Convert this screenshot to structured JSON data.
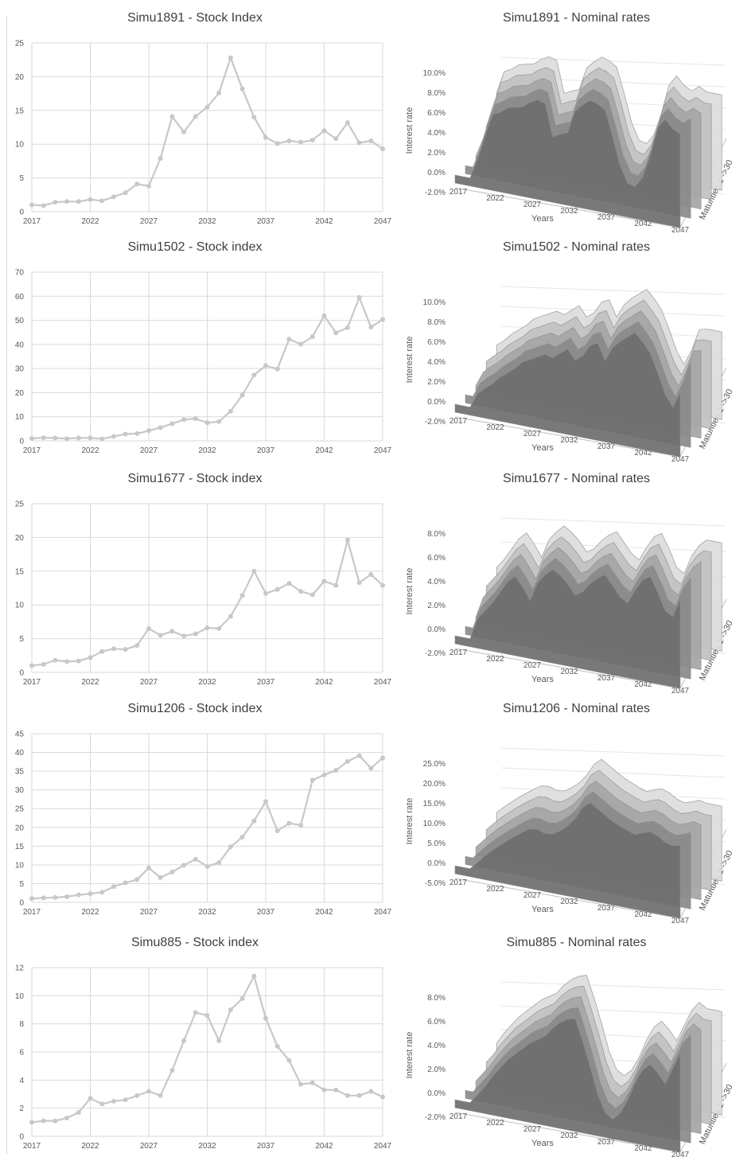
{
  "colors": {
    "line": "#c8c8c8",
    "grid": "#d9d9d9",
    "text": "#595959",
    "title": "#404040"
  },
  "chart_data": [
    {
      "type": "line",
      "title": "Simu1891 - Stock Index",
      "x": [
        2017,
        2018,
        2019,
        2020,
        2021,
        2022,
        2023,
        2024,
        2025,
        2026,
        2027,
        2028,
        2029,
        2030,
        2031,
        2032,
        2033,
        2034,
        2035,
        2036,
        2037,
        2038,
        2039,
        2040,
        2041,
        2042,
        2043,
        2044,
        2045,
        2046,
        2047
      ],
      "values": [
        1.0,
        0.9,
        1.4,
        1.5,
        1.5,
        1.8,
        1.6,
        2.2,
        2.8,
        4.1,
        3.8,
        7.9,
        14.1,
        11.8,
        14.1,
        15.5,
        17.6,
        22.8,
        18.2,
        14.0,
        11.0,
        10.1,
        10.5,
        10.3,
        10.6,
        12.0,
        10.8,
        13.2,
        10.2,
        10.5,
        9.3
      ],
      "ylim": [
        0,
        25
      ],
      "yticks": [
        0,
        5,
        10,
        15,
        20,
        25
      ],
      "xticks": [
        2017,
        2022,
        2027,
        2032,
        2037,
        2042,
        2047
      ]
    },
    {
      "type": "line",
      "title": "Simu1502 - Stock index",
      "x": [
        2017,
        2018,
        2019,
        2020,
        2021,
        2022,
        2023,
        2024,
        2025,
        2026,
        2027,
        2028,
        2029,
        2030,
        2031,
        2032,
        2033,
        2034,
        2035,
        2036,
        2037,
        2038,
        2039,
        2040,
        2041,
        2042,
        2043,
        2044,
        2045,
        2046,
        2047
      ],
      "values": [
        1.0,
        1.3,
        1.2,
        0.9,
        1.2,
        1.2,
        0.8,
        1.8,
        2.8,
        3.0,
        4.2,
        5.5,
        7.1,
        8.8,
        9.2,
        7.5,
        8.0,
        12.3,
        19.0,
        27.3,
        31.2,
        29.8,
        42.2,
        40.1,
        43.2,
        51.9,
        44.8,
        47.0,
        59.5,
        47.2,
        50.4
      ],
      "ylim": [
        0,
        70
      ],
      "yticks": [
        0,
        10,
        20,
        30,
        40,
        50,
        60,
        70
      ],
      "xticks": [
        2017,
        2022,
        2027,
        2032,
        2037,
        2042,
        2047
      ]
    },
    {
      "type": "line",
      "title": "Simu1677 - Stock index",
      "x": [
        2017,
        2018,
        2019,
        2020,
        2021,
        2022,
        2023,
        2024,
        2025,
        2026,
        2027,
        2028,
        2029,
        2030,
        2031,
        2032,
        2033,
        2034,
        2035,
        2036,
        2037,
        2038,
        2039,
        2040,
        2041,
        2042,
        2043,
        2044,
        2045,
        2046,
        2047
      ],
      "values": [
        1.0,
        1.2,
        1.8,
        1.6,
        1.7,
        2.2,
        3.1,
        3.5,
        3.4,
        4.0,
        6.5,
        5.5,
        6.1,
        5.4,
        5.7,
        6.6,
        6.5,
        8.3,
        11.4,
        15.0,
        11.7,
        12.3,
        13.2,
        12.0,
        11.5,
        13.5,
        12.9,
        19.6,
        13.3,
        14.5,
        12.9
      ],
      "ylim": [
        0,
        25
      ],
      "yticks": [
        0,
        5,
        10,
        15,
        20,
        25
      ],
      "xticks": [
        2017,
        2022,
        2027,
        2032,
        2037,
        2042,
        2047
      ]
    },
    {
      "type": "line",
      "title": "Simu1206 - Stock index",
      "x": [
        2017,
        2018,
        2019,
        2020,
        2021,
        2022,
        2023,
        2024,
        2025,
        2026,
        2027,
        2028,
        2029,
        2030,
        2031,
        2032,
        2033,
        2034,
        2035,
        2036,
        2037,
        2038,
        2039,
        2040,
        2041,
        2042,
        2043,
        2044,
        2045,
        2046,
        2047
      ],
      "values": [
        1.0,
        1.2,
        1.3,
        1.5,
        2.0,
        2.3,
        2.7,
        4.2,
        5.2,
        6.1,
        9.2,
        6.6,
        8.1,
        9.9,
        11.5,
        9.6,
        10.6,
        14.8,
        17.4,
        21.7,
        26.9,
        19.1,
        21.1,
        20.6,
        32.6,
        34.0,
        35.2,
        37.6,
        39.1,
        35.8,
        38.5
      ],
      "ylim": [
        0,
        45
      ],
      "yticks": [
        0,
        5,
        10,
        15,
        20,
        25,
        30,
        35,
        40,
        45
      ],
      "xticks": [
        2017,
        2022,
        2027,
        2032,
        2037,
        2042,
        2047
      ]
    },
    {
      "type": "line",
      "title": "Simu885 - Stock index",
      "x": [
        2017,
        2018,
        2019,
        2020,
        2021,
        2022,
        2023,
        2024,
        2025,
        2026,
        2027,
        2028,
        2029,
        2030,
        2031,
        2032,
        2033,
        2034,
        2035,
        2036,
        2037,
        2038,
        2039,
        2040,
        2041,
        2042,
        2043,
        2044,
        2045,
        2046,
        2047
      ],
      "values": [
        1.0,
        1.1,
        1.1,
        1.3,
        1.7,
        2.7,
        2.3,
        2.5,
        2.6,
        2.9,
        3.2,
        2.9,
        4.7,
        6.8,
        8.8,
        8.6,
        6.8,
        9.0,
        9.8,
        11.4,
        8.4,
        6.4,
        5.4,
        3.7,
        3.8,
        3.3,
        3.3,
        2.9,
        2.9,
        3.2,
        2.8
      ],
      "ylim": [
        0,
        12
      ],
      "yticks": [
        0,
        2,
        4,
        6,
        8,
        10,
        12
      ],
      "xticks": [
        2017,
        2022,
        2027,
        2032,
        2037,
        2042,
        2047
      ]
    }
  ],
  "surfaces": [
    {
      "title": "Simu1891 - Nominal rates",
      "zticks": [
        "10.0%",
        "8.0%",
        "6.0%",
        "4.0%",
        "2.0%",
        "0.0%",
        "-2.0%"
      ],
      "zlabel": "Interest rate",
      "xlabel": "Years",
      "ylabel": "Maturities 1 ->30",
      "xticks": [
        "2017",
        "2022",
        "2027",
        "2032",
        "2037",
        "2042",
        "2047"
      ],
      "profile": [
        0.0,
        2.0,
        4.5,
        6.8,
        7.2,
        7.8,
        8.0,
        8.2,
        8.8,
        9.2,
        9.0,
        5.8,
        6.2,
        6.5,
        8.8,
        9.6,
        10.2,
        10.0,
        9.5,
        7.0,
        4.2,
        2.6,
        2.4,
        3.5,
        5.8,
        8.8,
        9.8,
        9.0,
        8.6,
        9.2,
        8.8
      ]
    },
    {
      "title": "Simu1502 - Nominal rates",
      "zticks": [
        "10.0%",
        "8.0%",
        "6.0%",
        "4.0%",
        "2.0%",
        "0.0%",
        "-2.0%"
      ],
      "zlabel": "Interest rate",
      "xlabel": "Years",
      "ylabel": "Maturities 1 ->30",
      "xticks": [
        "2017",
        "2022",
        "2027",
        "2032",
        "2037",
        "2042",
        "2047"
      ],
      "profile": [
        0.0,
        1.5,
        2.2,
        2.8,
        3.6,
        4.2,
        4.8,
        5.6,
        6.0,
        6.4,
        6.8,
        6.6,
        7.2,
        7.8,
        6.8,
        7.4,
        8.6,
        9.0,
        7.4,
        8.8,
        9.6,
        10.2,
        10.8,
        10.0,
        9.0,
        7.2,
        5.2,
        4.0,
        5.6,
        7.8,
        8.0
      ]
    },
    {
      "title": "Simu1677 - Nominal rates",
      "zticks": [
        "8.0%",
        "6.0%",
        "4.0%",
        "2.0%",
        "0.0%",
        "-2.0%"
      ],
      "zlabel": "Interest rate",
      "xlabel": "Years",
      "ylabel": "Maturities 1 ->30",
      "xticks": [
        "2017",
        "2022",
        "2027",
        "2032",
        "2037",
        "2042",
        "2047"
      ],
      "profile": [
        0.0,
        1.8,
        2.6,
        3.4,
        4.4,
        5.4,
        6.0,
        5.2,
        4.2,
        5.8,
        6.6,
        7.2,
        6.8,
        6.2,
        5.4,
        5.8,
        6.6,
        7.2,
        7.6,
        6.8,
        6.0,
        5.6,
        6.8,
        7.8,
        8.2,
        7.0,
        5.6,
        5.2,
        6.8,
        7.8,
        8.4
      ]
    },
    {
      "title": "Simu1206 - Nominal rates",
      "zticks": [
        "25.0%",
        "20.0%",
        "15.0%",
        "10.0%",
        "5.0%",
        "0.0%",
        "-5.0%"
      ],
      "zlabel": "Interest rate",
      "xlabel": "Years",
      "ylabel": "Maturities 1 ->30",
      "xticks": [
        "2017",
        "2022",
        "2027",
        "2032",
        "2037",
        "2042",
        "2047"
      ],
      "profile": [
        0.0,
        2.0,
        4.0,
        5.8,
        7.4,
        9.0,
        10.4,
        11.8,
        13.0,
        13.2,
        12.6,
        12.8,
        14.0,
        15.6,
        17.8,
        21.0,
        22.6,
        21.4,
        20.2,
        19.0,
        18.2,
        17.4,
        16.8,
        17.6,
        18.2,
        17.6,
        16.4,
        15.8,
        16.4,
        17.2,
        16.8
      ]
    },
    {
      "title": "Simu885 - Nominal rates",
      "zticks": [
        "8.0%",
        "6.0%",
        "4.0%",
        "2.0%",
        "0.0%",
        "-2.0%"
      ],
      "zlabel": "Interest rate",
      "xlabel": "Years",
      "ylabel": "Maturities 1 ->30",
      "xticks": [
        "2017",
        "2022",
        "2027",
        "2032",
        "2037",
        "2042",
        "2047"
      ],
      "profile": [
        0.0,
        0.8,
        1.6,
        2.6,
        3.4,
        4.2,
        4.8,
        5.4,
        6.0,
        6.4,
        6.8,
        7.6,
        8.2,
        8.6,
        8.8,
        7.0,
        5.0,
        2.8,
        1.4,
        1.0,
        1.6,
        2.8,
        4.4,
        5.6,
        6.2,
        5.6,
        4.8,
        6.2,
        7.6,
        8.4,
        8.0
      ]
    }
  ]
}
